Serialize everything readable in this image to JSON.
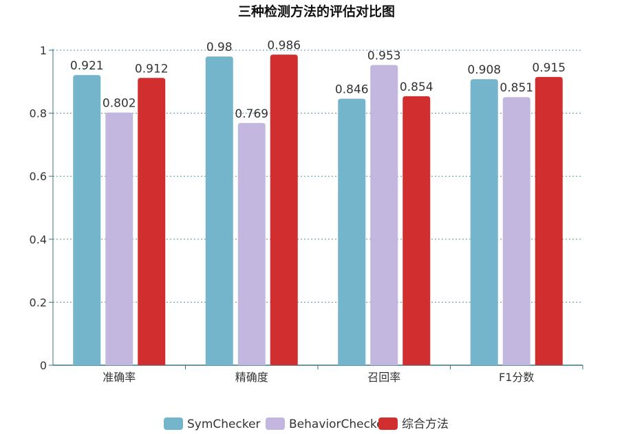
{
  "chart_data": {
    "type": "bar",
    "title": "三种检测方法的评估对比图",
    "xlabel": "",
    "ylabel": "",
    "categories": [
      "准确率",
      "精确度",
      "召回率",
      "F1分数"
    ],
    "series": [
      {
        "name": "SymChecker",
        "color": "#75b5cc",
        "values": [
          0.921,
          0.98,
          0.846,
          0.908
        ],
        "labels": [
          "0.921",
          "0.98",
          "0.846",
          "0.908"
        ]
      },
      {
        "name": "BehaviorChecker",
        "color": "#c4b7df",
        "values": [
          0.802,
          0.769,
          0.953,
          0.851
        ],
        "labels": [
          "0.802",
          "0.769",
          "0.953",
          "0.851"
        ]
      },
      {
        "name": "综合方法",
        "color": "#d12f2f",
        "values": [
          0.912,
          0.986,
          0.854,
          0.915
        ],
        "labels": [
          "0.912",
          "0.986",
          "0.854",
          "0.915"
        ]
      }
    ],
    "ylim": [
      0,
      1
    ],
    "yticks": [
      0,
      0.2,
      0.4,
      0.6,
      0.8,
      1
    ],
    "ytick_labels": [
      "0",
      "0.2",
      "0.4",
      "0.6",
      "0.8",
      "1"
    ],
    "grid": true,
    "legend": "bottom-center"
  }
}
